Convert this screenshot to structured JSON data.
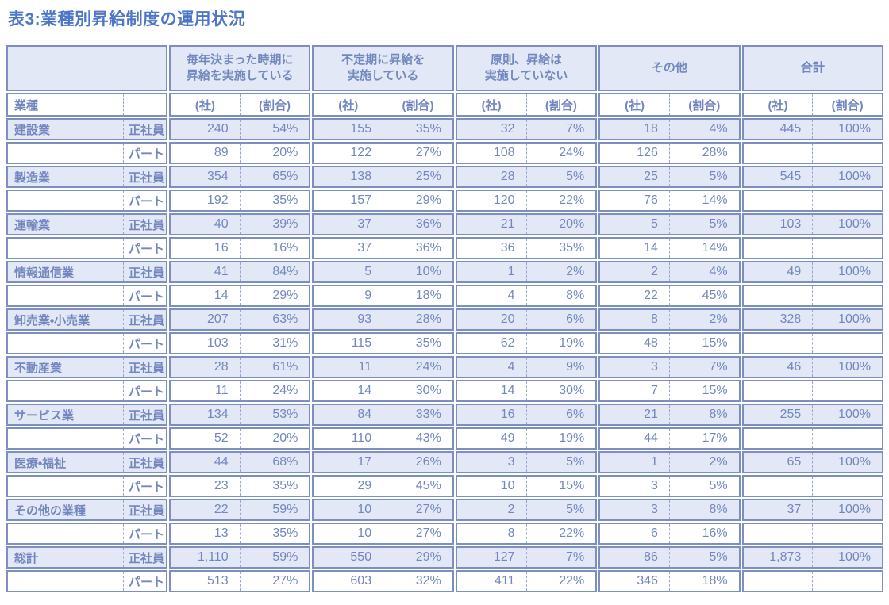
{
  "title": "表3:業種別昇給制度の運用状況",
  "colors": {
    "title": "#4d77c6",
    "text": "#7287bf",
    "border": "#7d8ec0",
    "fill": "#e2e8f6",
    "dash": "#98a7d1"
  },
  "table": {
    "industry_header": "業種",
    "unit_company": "(社)",
    "unit_ratio": "(割合)",
    "groups": [
      "毎年決まった時期に\n昇給を実施している",
      "不定期に昇給を\n実施している",
      "原則、昇給は\n実施していない",
      "その他",
      "合計"
    ],
    "rows": [
      {
        "industry": "建設業",
        "type": "正社員",
        "values": [
          "240",
          "54%",
          "155",
          "35%",
          "32",
          "7%",
          "18",
          "4%",
          "445",
          "100%"
        ]
      },
      {
        "industry": "",
        "type": "パート",
        "values": [
          "89",
          "20%",
          "122",
          "27%",
          "108",
          "24%",
          "126",
          "28%",
          "",
          ""
        ]
      },
      {
        "industry": "製造業",
        "type": "正社員",
        "values": [
          "354",
          "65%",
          "138",
          "25%",
          "28",
          "5%",
          "25",
          "5%",
          "545",
          "100%"
        ]
      },
      {
        "industry": "",
        "type": "パート",
        "values": [
          "192",
          "35%",
          "157",
          "29%",
          "120",
          "22%",
          "76",
          "14%",
          "",
          ""
        ]
      },
      {
        "industry": "運輸業",
        "type": "正社員",
        "values": [
          "40",
          "39%",
          "37",
          "36%",
          "21",
          "20%",
          "5",
          "5%",
          "103",
          "100%"
        ]
      },
      {
        "industry": "",
        "type": "パート",
        "values": [
          "16",
          "16%",
          "37",
          "36%",
          "36",
          "35%",
          "14",
          "14%",
          "",
          ""
        ]
      },
      {
        "industry": "情報通信業",
        "type": "正社員",
        "values": [
          "41",
          "84%",
          "5",
          "10%",
          "1",
          "2%",
          "2",
          "4%",
          "49",
          "100%"
        ]
      },
      {
        "industry": "",
        "type": "パート",
        "values": [
          "14",
          "29%",
          "9",
          "18%",
          "4",
          "8%",
          "22",
          "45%",
          "",
          ""
        ]
      },
      {
        "industry": "卸売業・小売業",
        "type": "正社員",
        "values": [
          "207",
          "63%",
          "93",
          "28%",
          "20",
          "6%",
          "8",
          "2%",
          "328",
          "100%"
        ]
      },
      {
        "industry": "",
        "type": "パート",
        "values": [
          "103",
          "31%",
          "115",
          "35%",
          "62",
          "19%",
          "48",
          "15%",
          "",
          ""
        ]
      },
      {
        "industry": "不動産業",
        "type": "正社員",
        "values": [
          "28",
          "61%",
          "11",
          "24%",
          "4",
          "9%",
          "3",
          "7%",
          "46",
          "100%"
        ]
      },
      {
        "industry": "",
        "type": "パート",
        "values": [
          "11",
          "24%",
          "14",
          "30%",
          "14",
          "30%",
          "7",
          "15%",
          "",
          ""
        ]
      },
      {
        "industry": "サービス業",
        "type": "正社員",
        "values": [
          "134",
          "53%",
          "84",
          "33%",
          "16",
          "6%",
          "21",
          "8%",
          "255",
          "100%"
        ]
      },
      {
        "industry": "",
        "type": "パート",
        "values": [
          "52",
          "20%",
          "110",
          "43%",
          "49",
          "19%",
          "44",
          "17%",
          "",
          ""
        ]
      },
      {
        "industry": "医療・福祉",
        "type": "正社員",
        "values": [
          "44",
          "68%",
          "17",
          "26%",
          "3",
          "5%",
          "1",
          "2%",
          "65",
          "100%"
        ]
      },
      {
        "industry": "",
        "type": "パート",
        "values": [
          "23",
          "35%",
          "29",
          "45%",
          "10",
          "15%",
          "3",
          "5%",
          "",
          ""
        ]
      },
      {
        "industry": "その他の業種",
        "type": "正社員",
        "values": [
          "22",
          "59%",
          "10",
          "27%",
          "2",
          "5%",
          "3",
          "8%",
          "37",
          "100%"
        ]
      },
      {
        "industry": "",
        "type": "パート",
        "values": [
          "13",
          "35%",
          "10",
          "27%",
          "8",
          "22%",
          "6",
          "16%",
          "",
          ""
        ]
      },
      {
        "industry": "総計",
        "type": "正社員",
        "values": [
          "1,110",
          "59%",
          "550",
          "29%",
          "127",
          "7%",
          "86",
          "5%",
          "1,873",
          "100%"
        ]
      },
      {
        "industry": "",
        "type": "パート",
        "values": [
          "513",
          "27%",
          "603",
          "32%",
          "411",
          "22%",
          "346",
          "18%",
          "",
          ""
        ]
      }
    ]
  }
}
